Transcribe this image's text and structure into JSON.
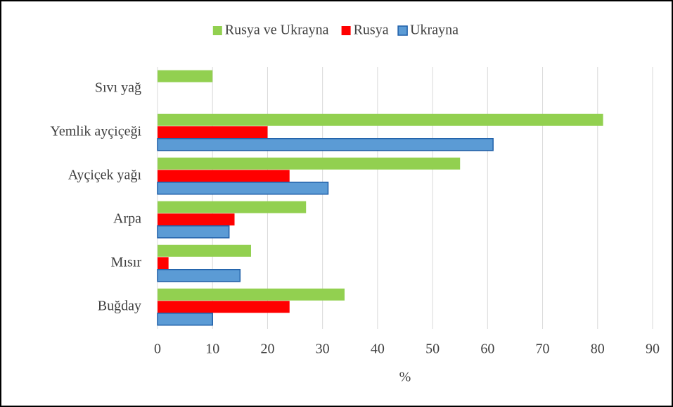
{
  "chart_data": {
    "type": "barh",
    "xlabel": "%",
    "categories": [
      "Sıvı yağ",
      "Yemlik ayçiçeği",
      "Ayçiçek yağı",
      "Arpa",
      "Mısır",
      "Buğday"
    ],
    "series": [
      {
        "name": "Rusya ve Ukrayna",
        "color": "#92d050",
        "values": [
          10,
          81,
          55,
          27,
          17,
          34
        ]
      },
      {
        "name": "Rusya",
        "color": "#ff0000",
        "values": [
          null,
          20,
          24,
          14,
          2,
          24
        ]
      },
      {
        "name": "Ukrayna",
        "color": "#5b9bd5",
        "edgecolor": "#1f5fa8",
        "values": [
          null,
          61,
          31,
          13,
          15,
          10
        ]
      }
    ],
    "xlim": [
      0,
      90
    ],
    "xticks": [
      0,
      10,
      20,
      30,
      40,
      50,
      60,
      70,
      80,
      90
    ],
    "grid": true,
    "legend": "top"
  }
}
